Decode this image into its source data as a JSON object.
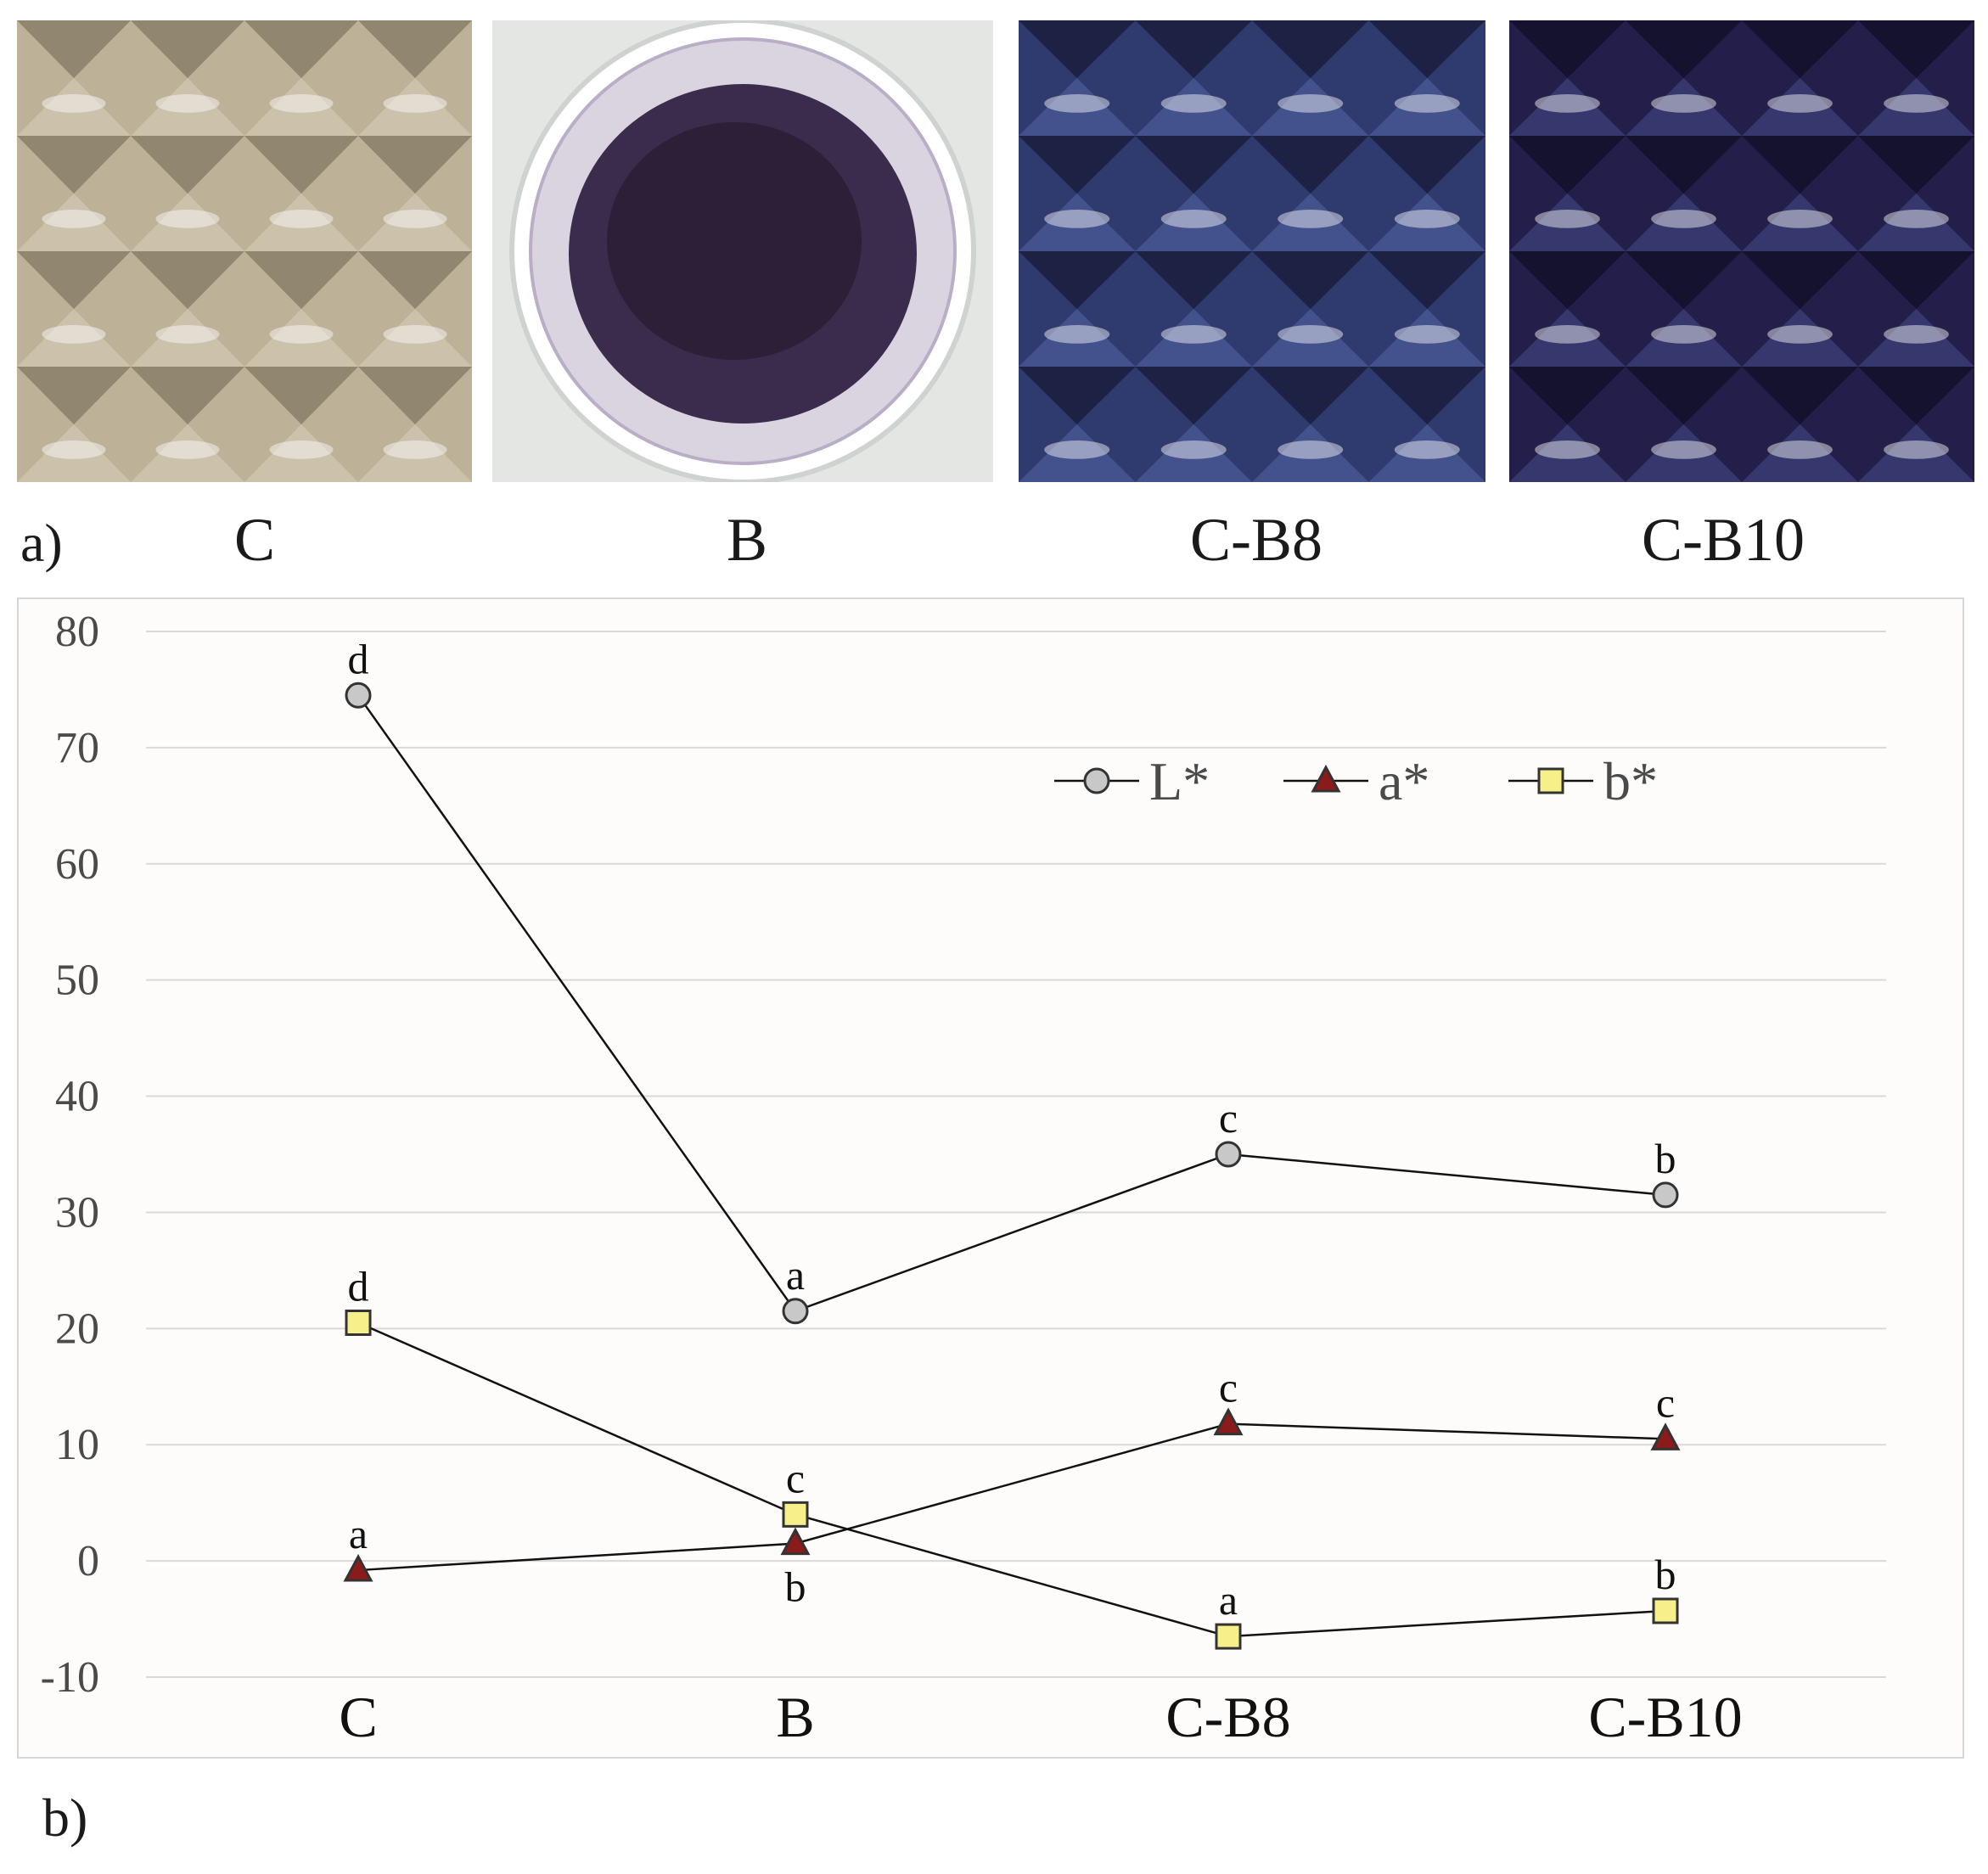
{
  "panel_a": {
    "label": "a)",
    "photos": [
      {
        "caption": "C",
        "tint": "#bdb197"
      },
      {
        "caption": "B",
        "tint": "#3b2c4d"
      },
      {
        "caption": "C-B8",
        "tint": "#2f3a6e"
      },
      {
        "caption": "C-B10",
        "tint": "#241f4a"
      }
    ]
  },
  "panel_b": {
    "label": "b)"
  },
  "chart_data": {
    "type": "line",
    "categories": [
      "C",
      "B",
      "C-B8",
      "C-B10"
    ],
    "ylim": [
      -10,
      80
    ],
    "yticks": [
      80,
      70,
      60,
      50,
      40,
      30,
      20,
      10,
      0,
      -10
    ],
    "grid": true,
    "legend_position": "top-right",
    "title": "",
    "xlabel": "",
    "ylabel": "",
    "series": [
      {
        "name": "L*",
        "marker": "circle",
        "color": "#c8c8c8",
        "values": [
          74.5,
          21.5,
          35.0,
          31.5
        ],
        "letters": [
          "d",
          "a",
          "c",
          "b"
        ],
        "letter_pos": [
          "above",
          "above",
          "above",
          "above"
        ]
      },
      {
        "name": "a*",
        "marker": "triangle",
        "color": "#8b1a1a",
        "values": [
          -0.8,
          1.5,
          11.8,
          10.5
        ],
        "letters": [
          "a",
          "b",
          "c",
          "c"
        ],
        "letter_pos": [
          "above",
          "below",
          "above",
          "above"
        ]
      },
      {
        "name": "b*",
        "marker": "square",
        "color": "#f7f08a",
        "values": [
          20.5,
          4.0,
          -6.5,
          -4.3
        ],
        "letters": [
          "d",
          "c",
          "a",
          "b"
        ],
        "letter_pos": [
          "above",
          "above",
          "above",
          "above"
        ]
      }
    ]
  }
}
